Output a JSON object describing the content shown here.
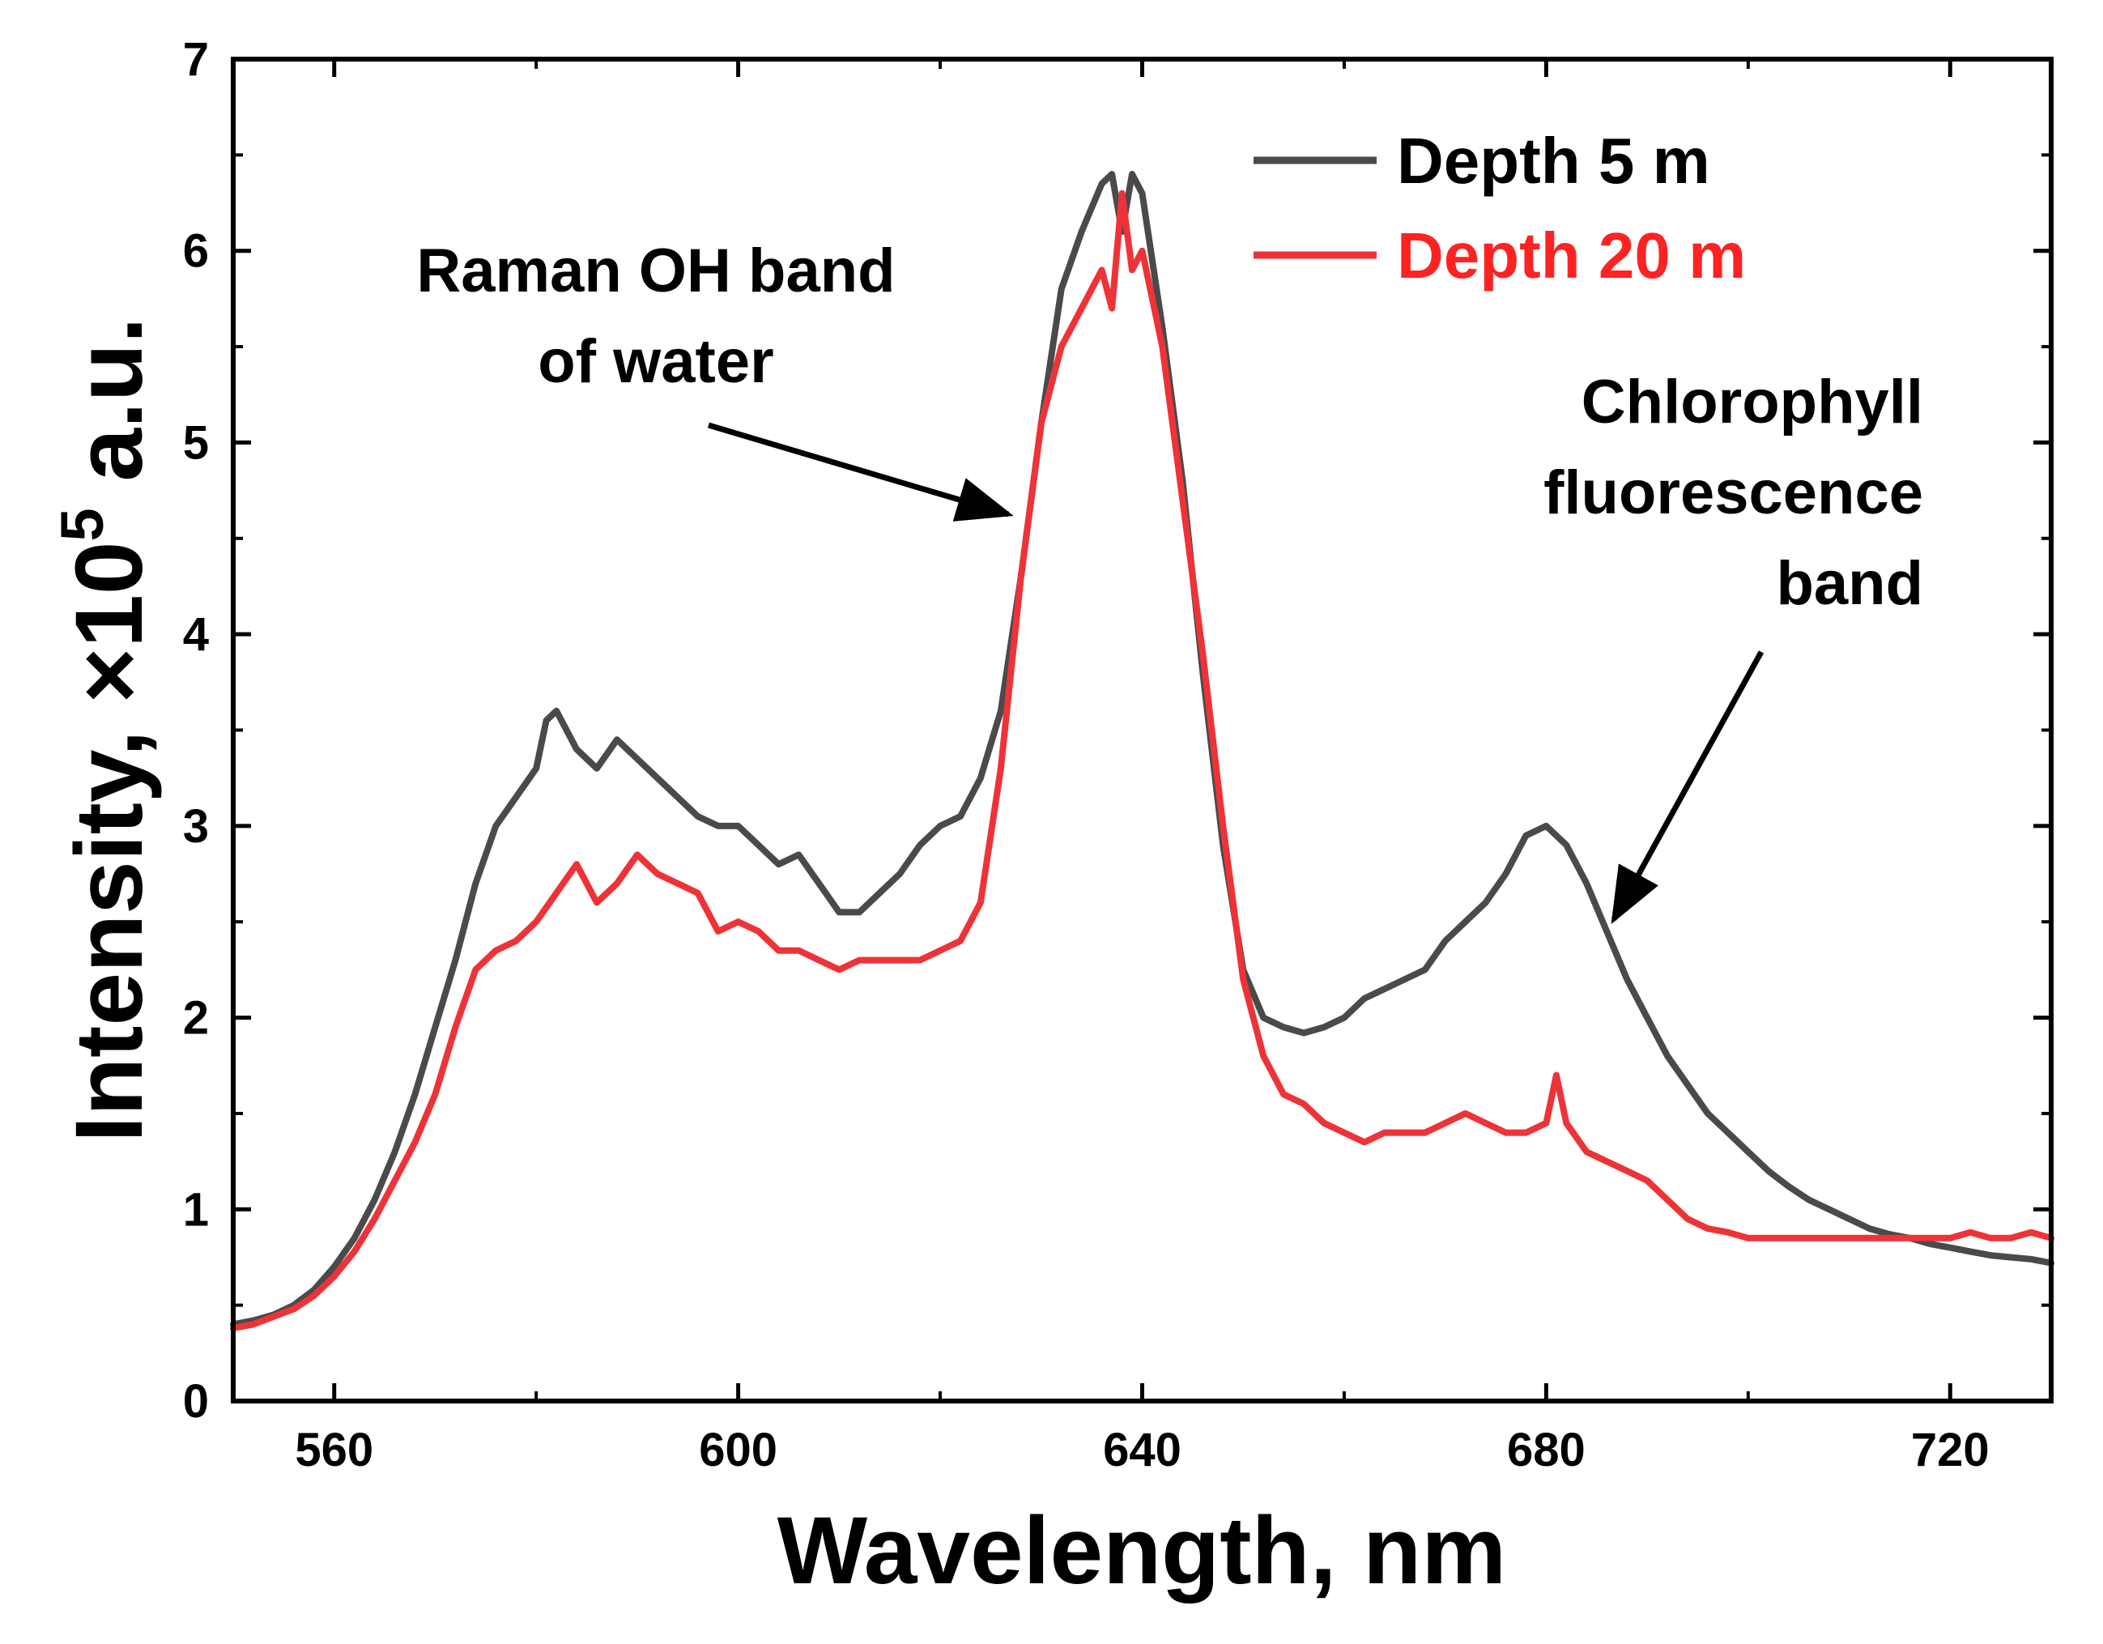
{
  "chart_data": {
    "type": "line",
    "title": "",
    "xlabel": "Wavelength, nm",
    "ylabel_prefix": "Intensity, ×10",
    "ylabel_exponent": "5",
    "ylabel_suffix": " a.u.",
    "xlim": [
      550,
      730
    ],
    "ylim": [
      0,
      7
    ],
    "xticks": [
      560,
      600,
      640,
      680,
      720
    ],
    "xtick_labels": [
      "560",
      "600",
      "640",
      "680",
      "720"
    ],
    "yticks": [
      0,
      1,
      2,
      3,
      4,
      5,
      6,
      7
    ],
    "ytick_labels": [
      "0",
      "1",
      "2",
      "3",
      "4",
      "5",
      "6",
      "7"
    ],
    "grid": false,
    "legend_position": "top-right",
    "series": [
      {
        "name": "Depth 5 m",
        "color": "#4a4a4a",
        "x": [
          550,
          552,
          554,
          556,
          558,
          560,
          562,
          564,
          566,
          568,
          570,
          572,
          574,
          576,
          578,
          580,
          581,
          582,
          584,
          586,
          588,
          590,
          592,
          594,
          596,
          598,
          600,
          602,
          604,
          606,
          608,
          610,
          612,
          614,
          616,
          618,
          620,
          622,
          624,
          626,
          628,
          630,
          632,
          634,
          636,
          637,
          638,
          639,
          640,
          642,
          644,
          646,
          648,
          650,
          652,
          654,
          656,
          658,
          660,
          662,
          664,
          666,
          668,
          670,
          672,
          674,
          676,
          678,
          680,
          682,
          684,
          686,
          688,
          690,
          692,
          694,
          696,
          698,
          700,
          702,
          704,
          706,
          708,
          710,
          712,
          714,
          716,
          718,
          720,
          722,
          724,
          726,
          728,
          730
        ],
        "y": [
          0.4,
          0.42,
          0.45,
          0.5,
          0.58,
          0.7,
          0.85,
          1.05,
          1.3,
          1.6,
          1.95,
          2.3,
          2.7,
          3.0,
          3.15,
          3.3,
          3.55,
          3.6,
          3.4,
          3.3,
          3.45,
          3.35,
          3.25,
          3.15,
          3.05,
          3.0,
          3.0,
          2.9,
          2.8,
          2.85,
          2.7,
          2.55,
          2.55,
          2.65,
          2.75,
          2.9,
          3.0,
          3.05,
          3.25,
          3.6,
          4.3,
          5.1,
          5.8,
          6.1,
          6.35,
          6.4,
          6.1,
          6.4,
          6.3,
          5.6,
          4.8,
          3.8,
          2.9,
          2.25,
          2.0,
          1.95,
          1.92,
          1.95,
          2.0,
          2.1,
          2.15,
          2.2,
          2.25,
          2.4,
          2.5,
          2.6,
          2.75,
          2.95,
          3.0,
          2.9,
          2.7,
          2.45,
          2.2,
          2.0,
          1.8,
          1.65,
          1.5,
          1.4,
          1.3,
          1.2,
          1.12,
          1.05,
          1.0,
          0.95,
          0.9,
          0.87,
          0.85,
          0.82,
          0.8,
          0.78,
          0.76,
          0.75,
          0.74,
          0.72
        ]
      },
      {
        "name": "Depth 20 m",
        "color": "#ee3338",
        "x": [
          550,
          552,
          554,
          556,
          558,
          560,
          562,
          564,
          566,
          568,
          570,
          572,
          574,
          576,
          578,
          580,
          582,
          584,
          586,
          588,
          590,
          592,
          594,
          596,
          598,
          600,
          602,
          604,
          606,
          608,
          610,
          612,
          614,
          616,
          618,
          620,
          622,
          624,
          626,
          628,
          630,
          632,
          634,
          636,
          637,
          638,
          639,
          640,
          642,
          644,
          646,
          648,
          650,
          652,
          654,
          656,
          658,
          660,
          662,
          664,
          666,
          668,
          670,
          672,
          674,
          676,
          678,
          680,
          681,
          682,
          684,
          686,
          688,
          690,
          692,
          694,
          696,
          698,
          700,
          702,
          704,
          706,
          708,
          710,
          712,
          714,
          716,
          718,
          720,
          722,
          724,
          726,
          728,
          730
        ],
        "y": [
          0.38,
          0.4,
          0.44,
          0.48,
          0.55,
          0.65,
          0.78,
          0.95,
          1.15,
          1.35,
          1.6,
          1.95,
          2.25,
          2.35,
          2.4,
          2.5,
          2.65,
          2.8,
          2.6,
          2.7,
          2.85,
          2.75,
          2.7,
          2.65,
          2.45,
          2.5,
          2.45,
          2.35,
          2.35,
          2.3,
          2.25,
          2.3,
          2.3,
          2.3,
          2.3,
          2.35,
          2.4,
          2.6,
          3.3,
          4.3,
          5.1,
          5.5,
          5.7,
          5.9,
          5.7,
          6.3,
          5.9,
          6.0,
          5.5,
          4.7,
          3.9,
          3.0,
          2.2,
          1.8,
          1.6,
          1.55,
          1.45,
          1.4,
          1.35,
          1.4,
          1.4,
          1.4,
          1.45,
          1.5,
          1.45,
          1.4,
          1.4,
          1.45,
          1.7,
          1.45,
          1.3,
          1.25,
          1.2,
          1.15,
          1.05,
          0.95,
          0.9,
          0.88,
          0.85,
          0.85,
          0.85,
          0.85,
          0.85,
          0.85,
          0.85,
          0.85,
          0.85,
          0.85,
          0.85,
          0.88,
          0.85,
          0.85,
          0.88,
          0.85
        ]
      }
    ],
    "annotations": [
      {
        "lines": [
          "Raman OH band",
          "of water"
        ]
      },
      {
        "lines": [
          "Chlorophyll",
          "fluorescence",
          "band"
        ]
      }
    ]
  }
}
